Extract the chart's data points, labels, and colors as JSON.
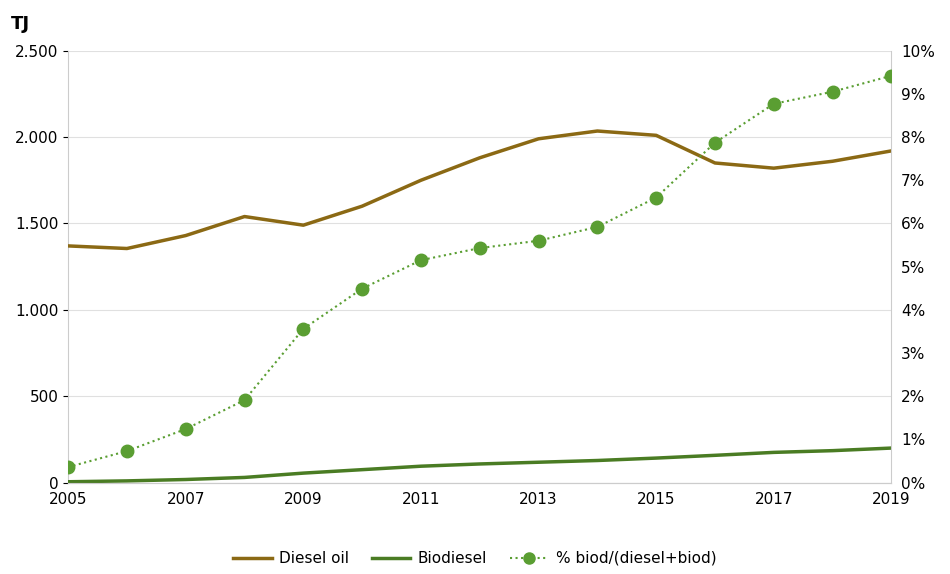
{
  "years": [
    2005,
    2006,
    2007,
    2008,
    2009,
    2010,
    2011,
    2012,
    2013,
    2014,
    2015,
    2016,
    2017,
    2018,
    2019
  ],
  "diesel_oil": [
    1370,
    1355,
    1430,
    1540,
    1490,
    1600,
    1750,
    1880,
    1990,
    2035,
    2010,
    1850,
    1820,
    1860,
    1920
  ],
  "biodiesel": [
    5,
    10,
    18,
    30,
    55,
    75,
    95,
    108,
    118,
    128,
    142,
    158,
    175,
    185,
    200
  ],
  "pct_biod": [
    0.36,
    0.73,
    1.24,
    1.91,
    3.56,
    4.49,
    5.15,
    5.43,
    5.6,
    5.92,
    6.6,
    7.87,
    8.77,
    9.05,
    9.42
  ],
  "pct_marker_years": [
    2005,
    2006,
    2007,
    2008,
    2009,
    2010,
    2011,
    2012,
    2013,
    2014,
    2015,
    2016,
    2017,
    2018,
    2019
  ],
  "diesel_color": "#8B6914",
  "biodiesel_color": "#4a7c23",
  "pct_color": "#5a9e32",
  "title": "TJ",
  "ylim_left": [
    0,
    2500
  ],
  "ylim_right": [
    0,
    10
  ],
  "yticks_left": [
    0,
    500,
    1000,
    1500,
    2000,
    2500
  ],
  "yticks_right": [
    0,
    1,
    2,
    3,
    4,
    5,
    6,
    7,
    8,
    9,
    10
  ],
  "xticks": [
    2005,
    2007,
    2009,
    2011,
    2013,
    2015,
    2017,
    2019
  ],
  "legend_labels": [
    "Diesel oil",
    "Biodiesel",
    "% biod/(diesel+biod)"
  ]
}
